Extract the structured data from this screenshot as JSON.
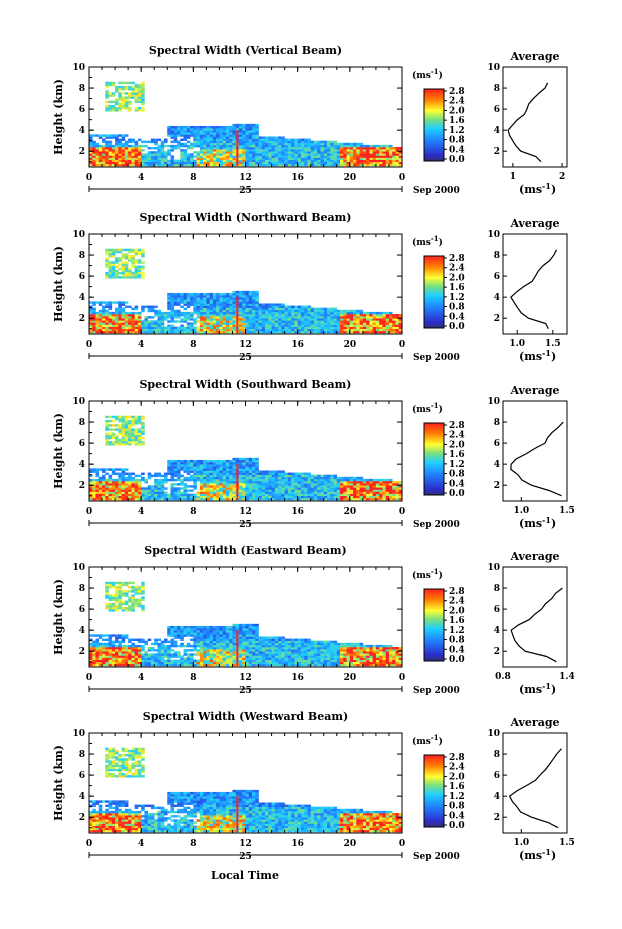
{
  "figure": {
    "xlabel": "Local Time",
    "date_label": "25",
    "month_label": "Sep 2000",
    "x_ticks": [
      "0",
      "4",
      "8",
      "12",
      "16",
      "20",
      "0"
    ],
    "y_ticks": [
      "2",
      "4",
      "6",
      "8",
      "10"
    ],
    "ylabel": "Height (km)",
    "colorbar_unit": "(ms",
    "colorbar_unit_exp": "-1",
    "colorbar_unit_close": ")",
    "colorbar_ticks": [
      "2.8",
      "2.4",
      "2.0",
      "1.6",
      "1.2",
      "0.8",
      "0.4",
      "0.0"
    ],
    "colorbar_range": [
      0.0,
      2.8
    ],
    "avg_title": "Average",
    "avg_xlabel_unit": "(ms",
    "avg_xlabel_exp": "-1",
    "avg_xlabel_close": ")",
    "colors": {
      "low": "#2c2cc8",
      "mid": "#1fd0ff",
      "green": "#7de07d",
      "high": "#ff2020",
      "peak": "#ff8000"
    }
  },
  "chart_data": [
    {
      "type": "heatmap",
      "title": "Spectral Width (Vertical Beam)",
      "xlim": [
        0,
        24
      ],
      "ylim": [
        0.5,
        10
      ],
      "spike_hour": 11.3,
      "profile": {
        "type": "line",
        "title": "Average",
        "xlim": [
          0.8,
          2.1
        ],
        "x_ticks": [
          "1",
          "2"
        ],
        "heights": [
          1.0,
          1.5,
          2.0,
          2.5,
          3.0,
          3.5,
          4.0,
          4.5,
          5.0,
          5.5,
          6.0,
          6.5,
          7.0,
          7.5,
          8.0,
          8.5
        ],
        "values": [
          1.55,
          1.45,
          1.15,
          1.05,
          1.02,
          0.95,
          0.92,
          1.0,
          1.1,
          1.25,
          1.3,
          1.35,
          1.4,
          1.55,
          1.65,
          1.7
        ]
      }
    },
    {
      "type": "heatmap",
      "title": "Spectral Width (Northward Beam)",
      "xlim": [
        0,
        24
      ],
      "ylim": [
        0.5,
        10
      ],
      "spike_hour": 11.3,
      "profile": {
        "type": "line",
        "title": "Average",
        "xlim": [
          0.8,
          1.7
        ],
        "x_ticks": [
          "1.0",
          "1.5"
        ],
        "heights": [
          1.0,
          1.5,
          2.0,
          2.5,
          3.0,
          3.5,
          4.0,
          4.5,
          5.0,
          5.5,
          6.0,
          6.5,
          7.0,
          7.5,
          8.0,
          8.5
        ],
        "values": [
          1.45,
          1.4,
          1.15,
          1.05,
          1.0,
          0.95,
          0.92,
          1.0,
          1.1,
          1.2,
          1.25,
          1.3,
          1.35,
          1.45,
          1.5,
          1.55
        ]
      }
    },
    {
      "type": "heatmap",
      "title": "Spectral Width (Southward Beam)",
      "xlim": [
        0,
        24
      ],
      "ylim": [
        0.5,
        10
      ],
      "spike_hour": 11.3,
      "profile": {
        "type": "line",
        "title": "Average",
        "xlim": [
          0.8,
          1.5
        ],
        "x_ticks": [
          "1.0",
          "1.5"
        ],
        "heights": [
          1.0,
          1.5,
          2.0,
          2.5,
          3.0,
          3.5,
          4.0,
          4.5,
          5.0,
          5.5,
          6.0,
          6.5,
          7.0,
          7.5,
          8.0
        ],
        "values": [
          1.45,
          1.3,
          1.1,
          1.0,
          0.95,
          0.9,
          0.88,
          0.95,
          1.05,
          1.15,
          1.25,
          1.3,
          1.35,
          1.4,
          1.45
        ]
      }
    },
    {
      "type": "heatmap",
      "title": "Spectral Width (Eastward Beam)",
      "xlim": [
        0,
        24
      ],
      "ylim": [
        0.5,
        10
      ],
      "spike_hour": 11.3,
      "profile": {
        "type": "line",
        "title": "Average",
        "xlim": [
          0.8,
          1.4
        ],
        "x_ticks": [
          "0.8",
          "1.4"
        ],
        "heights": [
          1.0,
          1.5,
          2.0,
          2.5,
          3.0,
          3.5,
          4.0,
          4.5,
          5.0,
          5.5,
          6.0,
          6.5,
          7.0,
          7.5,
          8.0
        ],
        "values": [
          1.3,
          1.2,
          1.0,
          0.95,
          0.92,
          0.9,
          0.88,
          0.95,
          1.05,
          1.1,
          1.15,
          1.2,
          1.25,
          1.3,
          1.35
        ]
      }
    },
    {
      "type": "heatmap",
      "title": "Spectral Width (Westward Beam)",
      "xlim": [
        0,
        24
      ],
      "ylim": [
        0.5,
        10
      ],
      "spike_hour": 11.3,
      "profile": {
        "type": "line",
        "title": "Average",
        "xlim": [
          0.8,
          1.5
        ],
        "x_ticks": [
          "1.0",
          "1.5"
        ],
        "heights": [
          1.0,
          1.5,
          2.0,
          2.5,
          3.0,
          3.5,
          4.0,
          4.5,
          5.0,
          5.5,
          6.0,
          6.5,
          7.0,
          7.5,
          8.0,
          8.5
        ],
        "values": [
          1.4,
          1.3,
          1.1,
          1.0,
          0.95,
          0.9,
          0.88,
          0.95,
          1.05,
          1.15,
          1.2,
          1.25,
          1.3,
          1.35,
          1.4,
          1.45
        ]
      }
    }
  ]
}
